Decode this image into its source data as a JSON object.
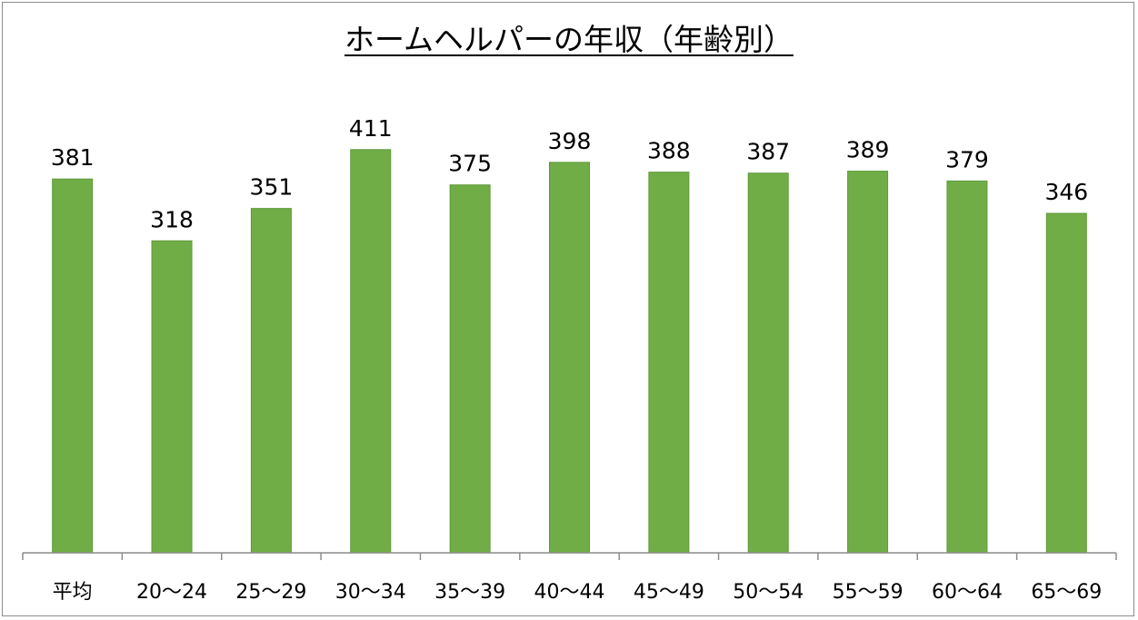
{
  "chart_data": {
    "type": "bar",
    "title": "ホームヘルパーの年収（年齢別）",
    "categories": [
      "平均",
      "20〜24",
      "25〜29",
      "30〜34",
      "35〜39",
      "40〜44",
      "45〜49",
      "50〜54",
      "55〜59",
      "60〜64",
      "65〜69"
    ],
    "values": [
      381,
      318,
      351,
      411,
      375,
      398,
      388,
      387,
      389,
      379,
      346
    ],
    "xlabel": "",
    "ylabel": "",
    "ylim": [
      0,
      470
    ],
    "grid": false,
    "legend": "none",
    "bar_color": "#70ad47",
    "bar_edge_color": "#5e9a38",
    "axis_color": "#8c8c8c"
  }
}
